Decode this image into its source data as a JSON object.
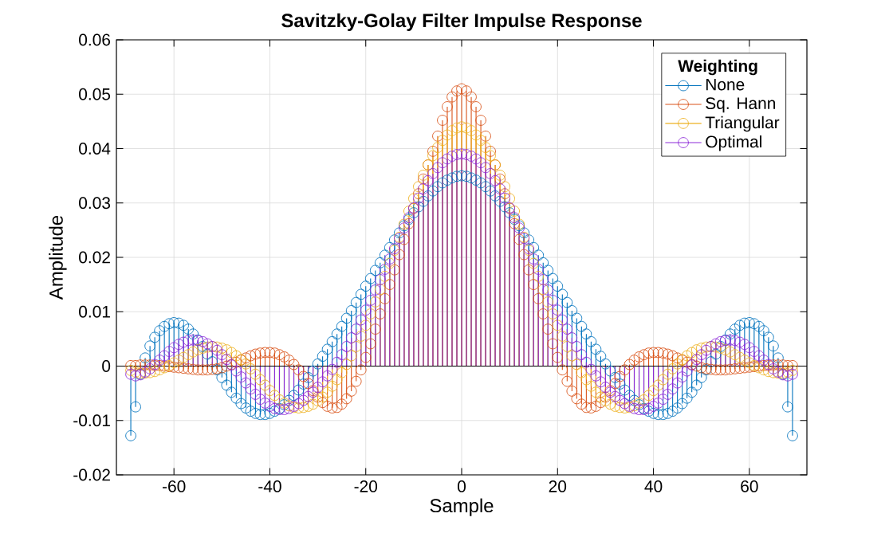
{
  "chart_data": {
    "type": "lollipop",
    "title": "Savitzky-Golay Filter Impulse Response",
    "xlabel": "Sample",
    "ylabel": "Amplitude",
    "legend_title": "Weighting",
    "legend": "top right",
    "grid": true,
    "marker": "circle",
    "line_style": "solid",
    "xlim": [
      -72,
      72
    ],
    "xticks": [
      -60,
      -40,
      -20,
      0,
      20,
      40,
      60
    ],
    "ylim": [
      -0.02,
      0.06
    ],
    "yticks": [
      -0.02,
      -0.01,
      0,
      0.01,
      0.02,
      0.03,
      0.04,
      0.05,
      0.06
    ],
    "ref_lines": [
      {
        "axis": "y",
        "value": 0,
        "color": "#000000"
      }
    ],
    "x": [
      -69,
      -68,
      -67,
      -66,
      -65,
      -64,
      -63,
      -62,
      -61,
      -60,
      -59,
      -58,
      -57,
      -56,
      -55,
      -54,
      -53,
      -52,
      -51,
      -50,
      -49,
      -48,
      -47,
      -46,
      -45,
      -44,
      -43,
      -42,
      -41,
      -40,
      -39,
      -38,
      -37,
      -36,
      -35,
      -34,
      -33,
      -32,
      -31,
      -30,
      -29,
      -28,
      -27,
      -26,
      -25,
      -24,
      -23,
      -22,
      -21,
      -20,
      -19,
      -18,
      -17,
      -16,
      -15,
      -14,
      -13,
      -12,
      -11,
      -10,
      -9,
      -8,
      -7,
      -6,
      -5,
      -4,
      -3,
      -2,
      -1,
      0,
      1,
      2,
      3,
      4,
      5,
      6,
      7,
      8,
      9,
      10,
      11,
      12,
      13,
      14,
      15,
      16,
      17,
      18,
      19,
      20,
      21,
      22,
      23,
      24,
      25,
      26,
      27,
      28,
      29,
      30,
      31,
      32,
      33,
      34,
      35,
      36,
      37,
      38,
      39,
      40,
      41,
      42,
      43,
      44,
      45,
      46,
      47,
      48,
      49,
      50,
      51,
      52,
      53,
      54,
      55,
      56,
      57,
      58,
      59,
      60,
      61,
      62,
      63,
      64,
      65,
      66,
      67,
      68,
      69
    ],
    "series": [
      {
        "name": "None",
        "color": "#0072bd",
        "values": [
          -0.0128,
          -0.0075,
          -0.0015,
          0.0015,
          0.0037,
          0.0053,
          0.0065,
          0.0073,
          0.0078,
          0.008,
          0.0079,
          0.0075,
          0.0068,
          0.0059,
          0.0048,
          0.0036,
          0.0022,
          0.0008,
          -0.0007,
          -0.0021,
          -0.0035,
          -0.0048,
          -0.0059,
          -0.0069,
          -0.0077,
          -0.0083,
          -0.0087,
          -0.0089,
          -0.0089,
          -0.0087,
          -0.0083,
          -0.0078,
          -0.0071,
          -0.0063,
          -0.0054,
          -0.0044,
          -0.0033,
          -0.0021,
          -0.0009,
          0.0004,
          0.0018,
          0.0031,
          0.0045,
          0.0059,
          0.0073,
          0.0088,
          0.0102,
          0.0117,
          0.0132,
          0.0147,
          0.0161,
          0.0176,
          0.019,
          0.0204,
          0.0218,
          0.0232,
          0.0245,
          0.0258,
          0.027,
          0.0282,
          0.0293,
          0.0303,
          0.0313,
          0.0322,
          0.033,
          0.0337,
          0.0342,
          0.0346,
          0.0349,
          0.035,
          0.0349,
          0.0346,
          0.0342,
          0.0337,
          0.033,
          0.0322,
          0.0313,
          0.0303,
          0.0293,
          0.0282,
          0.027,
          0.0258,
          0.0245,
          0.0232,
          0.0218,
          0.0204,
          0.019,
          0.0176,
          0.0161,
          0.0147,
          0.0132,
          0.0117,
          0.0102,
          0.0088,
          0.0073,
          0.0059,
          0.0045,
          0.0031,
          0.0018,
          0.0004,
          -0.0009,
          -0.0021,
          -0.0033,
          -0.0044,
          -0.0054,
          -0.0063,
          -0.0071,
          -0.0078,
          -0.0083,
          -0.0087,
          -0.0089,
          -0.0089,
          -0.0087,
          -0.0083,
          -0.0077,
          -0.0069,
          -0.0059,
          -0.0048,
          -0.0035,
          -0.0021,
          -0.0007,
          0.0008,
          0.0022,
          0.0036,
          0.0048,
          0.0059,
          0.0068,
          0.0075,
          0.0079,
          0.008,
          0.0078,
          0.0073,
          0.0065,
          0.0053,
          0.0037,
          0.0015,
          -0.0015,
          -0.0075,
          -0.0128
        ]
      },
      {
        "name": "Sq. Hann",
        "color": "#d95319",
        "values": [
          0.0001,
          0.0001,
          0.0002,
          0.0002,
          0.0002,
          0.0001,
          0.0001,
          0.0,
          -0.0001,
          -0.0002,
          -0.0003,
          -0.0004,
          -0.0005,
          -0.0006,
          -0.0007,
          -0.0007,
          -0.0007,
          -0.0006,
          -0.0005,
          -0.0003,
          0.0,
          0.0003,
          0.0007,
          0.0011,
          0.0015,
          0.0019,
          0.0022,
          0.0024,
          0.0025,
          0.0025,
          0.0024,
          0.0021,
          0.0017,
          0.0011,
          0.0003,
          -0.0007,
          -0.0019,
          -0.0032,
          -0.0045,
          -0.0057,
          -0.0067,
          -0.0074,
          -0.0077,
          -0.0076,
          -0.007,
          -0.006,
          -0.0046,
          -0.0028,
          -0.0007,
          0.0016,
          0.0041,
          0.0068,
          0.0096,
          0.0124,
          0.015,
          0.0177,
          0.0205,
          0.0233,
          0.0262,
          0.029,
          0.0317,
          0.0344,
          0.037,
          0.0395,
          0.0423,
          0.0452,
          0.0477,
          0.0495,
          0.0506,
          0.051,
          0.0506,
          0.0495,
          0.0477,
          0.0452,
          0.0423,
          0.0395,
          0.037,
          0.0344,
          0.0317,
          0.029,
          0.0262,
          0.0233,
          0.0205,
          0.0177,
          0.015,
          0.0124,
          0.0096,
          0.0068,
          0.0041,
          0.0016,
          -0.0007,
          -0.0028,
          -0.0046,
          -0.006,
          -0.007,
          -0.0076,
          -0.0077,
          -0.0074,
          -0.0067,
          -0.0057,
          -0.0045,
          -0.0032,
          -0.0019,
          -0.0007,
          0.0003,
          0.0011,
          0.0017,
          0.0021,
          0.0024,
          0.0025,
          0.0025,
          0.0024,
          0.0022,
          0.0019,
          0.0015,
          0.0011,
          0.0007,
          0.0003,
          0.0,
          -0.0003,
          -0.0005,
          -0.0006,
          -0.0007,
          -0.0007,
          -0.0007,
          -0.0006,
          -0.0005,
          -0.0004,
          -0.0003,
          -0.0002,
          -0.0001,
          0.0,
          0.0001,
          0.0001,
          0.0002,
          0.0002,
          0.0002,
          0.0001,
          0.0001
        ]
      },
      {
        "name": "Triangular",
        "color": "#edb120",
        "values": [
          -0.0008,
          -0.0011,
          -0.0013,
          -0.0013,
          -0.0012,
          -0.001,
          -0.0007,
          -0.0003,
          0.0001,
          0.0006,
          0.0011,
          0.0016,
          0.0021,
          0.0026,
          0.003,
          0.0033,
          0.0035,
          0.0036,
          0.0035,
          0.0033,
          0.003,
          0.0025,
          0.0019,
          0.0012,
          0.0004,
          -0.0005,
          -0.0015,
          -0.0025,
          -0.0035,
          -0.0045,
          -0.0054,
          -0.0062,
          -0.0068,
          -0.0073,
          -0.0076,
          -0.0077,
          -0.0076,
          -0.0074,
          -0.007,
          -0.0064,
          -0.0057,
          -0.0048,
          -0.0037,
          -0.0025,
          -0.0012,
          0.0003,
          0.0019,
          0.0036,
          0.0055,
          0.0075,
          0.0096,
          0.0118,
          0.0141,
          0.0165,
          0.0189,
          0.0213,
          0.0237,
          0.0261,
          0.0285,
          0.0308,
          0.033,
          0.0351,
          0.037,
          0.0387,
          0.0402,
          0.0415,
          0.0425,
          0.0433,
          0.0438,
          0.044,
          0.0438,
          0.0433,
          0.0425,
          0.0415,
          0.0402,
          0.0387,
          0.037,
          0.0351,
          0.033,
          0.0308,
          0.0285,
          0.0261,
          0.0237,
          0.0213,
          0.0189,
          0.0165,
          0.0141,
          0.0118,
          0.0096,
          0.0075,
          0.0055,
          0.0036,
          0.0019,
          0.0003,
          -0.0012,
          -0.0025,
          -0.0037,
          -0.0048,
          -0.0057,
          -0.0064,
          -0.007,
          -0.0074,
          -0.0076,
          -0.0077,
          -0.0076,
          -0.0073,
          -0.0068,
          -0.0062,
          -0.0054,
          -0.0045,
          -0.0035,
          -0.0025,
          -0.0015,
          -0.0005,
          0.0004,
          0.0012,
          0.0019,
          0.0025,
          0.003,
          0.0033,
          0.0035,
          0.0036,
          0.0035,
          0.0033,
          0.003,
          0.0026,
          0.0021,
          0.0016,
          0.0011,
          0.0006,
          0.0001,
          -0.0003,
          -0.0007,
          -0.001,
          -0.0012,
          -0.0013,
          -0.0013,
          -0.0011,
          -0.0008
        ]
      },
      {
        "name": "Optimal",
        "color": "#8e2bd8",
        "values": [
          -0.0015,
          -0.0018,
          -0.0016,
          -0.0011,
          -0.0005,
          0.0003,
          0.0011,
          0.0019,
          0.0027,
          0.0034,
          0.004,
          0.0044,
          0.0047,
          0.0048,
          0.0047,
          0.0045,
          0.0041,
          0.0036,
          0.0029,
          0.0021,
          0.0012,
          0.0002,
          -0.0009,
          -0.002,
          -0.0031,
          -0.0042,
          -0.0052,
          -0.0061,
          -0.0068,
          -0.0074,
          -0.0078,
          -0.008,
          -0.008,
          -0.0078,
          -0.0074,
          -0.0069,
          -0.0063,
          -0.0056,
          -0.0048,
          -0.0039,
          -0.0029,
          -0.0018,
          -0.0006,
          0.0007,
          0.0021,
          0.0036,
          0.0052,
          0.0068,
          0.0085,
          0.0103,
          0.0121,
          0.014,
          0.0159,
          0.0178,
          0.0197,
          0.0216,
          0.0235,
          0.0254,
          0.0273,
          0.0291,
          0.0309,
          0.0326,
          0.0341,
          0.0354,
          0.0365,
          0.0374,
          0.0381,
          0.0386,
          0.0389,
          0.039,
          0.0389,
          0.0386,
          0.0381,
          0.0374,
          0.0365,
          0.0354,
          0.0341,
          0.0326,
          0.0309,
          0.0291,
          0.0273,
          0.0254,
          0.0235,
          0.0216,
          0.0197,
          0.0178,
          0.0159,
          0.014,
          0.0121,
          0.0103,
          0.0085,
          0.0068,
          0.0052,
          0.0036,
          0.0021,
          0.0007,
          -0.0006,
          -0.0018,
          -0.0029,
          -0.0039,
          -0.0048,
          -0.0056,
          -0.0063,
          -0.0069,
          -0.0074,
          -0.0078,
          -0.008,
          -0.008,
          -0.0078,
          -0.0074,
          -0.0068,
          -0.0061,
          -0.0052,
          -0.0042,
          -0.0031,
          -0.002,
          -0.0009,
          0.0002,
          0.0012,
          0.0021,
          0.0029,
          0.0036,
          0.0041,
          0.0045,
          0.0047,
          0.0048,
          0.0047,
          0.0044,
          0.004,
          0.0034,
          0.0027,
          0.0019,
          0.0011,
          0.0003,
          -0.0005,
          -0.0011,
          -0.0016,
          -0.0018,
          -0.0015
        ]
      }
    ]
  }
}
